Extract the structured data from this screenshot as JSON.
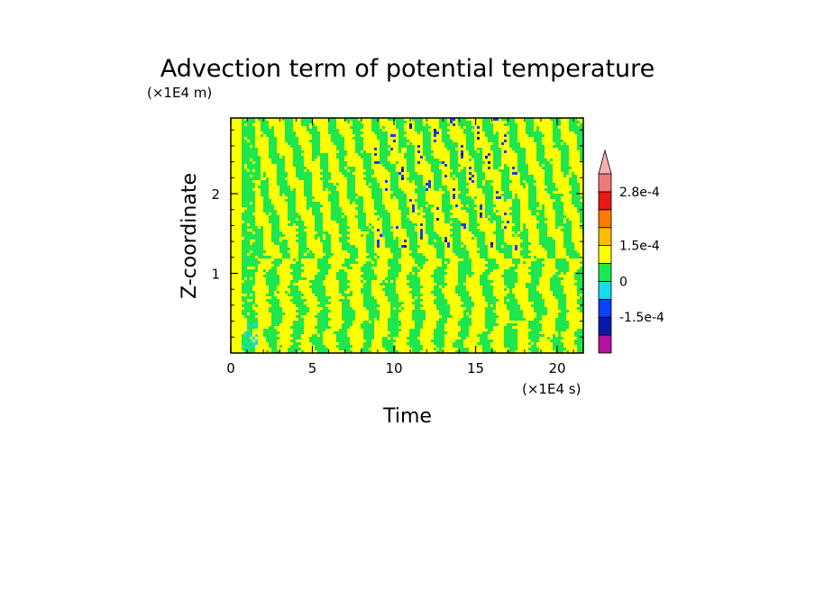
{
  "chart_data": {
    "type": "heatmap",
    "title": "Advection term of potential temperature",
    "xlabel": "Time",
    "ylabel": "Z-coordinate",
    "x_unit": "(×1E4 s)",
    "y_unit": "(×1E4 m)",
    "xlim": [
      0,
      21.6
    ],
    "ylim": [
      0,
      2.95
    ],
    "x_ticks": [
      "0",
      "5",
      "10",
      "15",
      "20"
    ],
    "x_tick_values": [
      0,
      5,
      10,
      15,
      20
    ],
    "y_ticks": [
      "1",
      "2"
    ],
    "y_tick_values": [
      1,
      2
    ],
    "grid": false,
    "colorbar": {
      "position": "right",
      "levels": [
        -0.000225,
        -0.00015,
        -7.5e-05,
        0,
        7.5e-05,
        0.00015,
        0.000225,
        0.00028
      ],
      "colors": [
        "#b4119e",
        "#0a1aa8",
        "#0a40ff",
        "#16dcee",
        "#1ee64e",
        "#ffff00",
        "#ffbc00",
        "#ff7a00",
        "#e81a14",
        "#f07a78",
        "#f5b0b0"
      ],
      "labels": [
        "2.8e-4",
        "1.5e-4",
        "0",
        "-1.5e-4"
      ],
      "label_values": [
        0.00028,
        0.00015,
        0,
        -0.00015
      ]
    },
    "pattern": {
      "dominant_levels": [
        "0 to 0.75e-4 (yellow)",
        "-0.75e-4 to 0 (green)"
      ],
      "description_upper": "diagonal streaks tilted from upper-left to lower-right above z=1.2, with isolated blue minima between t=9 and t=17",
      "description_lower": "vertical banded yellow/green patches below z=1.0",
      "early_column": "mostly green column near t=0.5-1.5"
    }
  }
}
